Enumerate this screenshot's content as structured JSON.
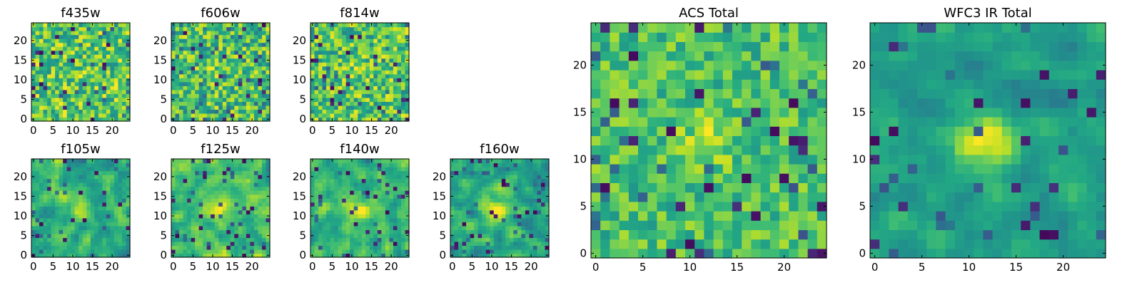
{
  "chart_data": [
    {
      "type": "heatmap",
      "title": "f435w",
      "x_ticks": [
        "0",
        "5",
        "10",
        "15",
        "20"
      ],
      "y_ticks": [
        "0",
        "5",
        "10",
        "15",
        "20"
      ],
      "xlim": [
        -0.5,
        24.5
      ],
      "ylim": [
        -0.5,
        24.5
      ],
      "grid": false,
      "colormap": "viridis",
      "pixels": "25x25",
      "note": "pixel noise field"
    },
    {
      "type": "heatmap",
      "title": "f606w",
      "x_ticks": [
        "0",
        "5",
        "10",
        "15",
        "20"
      ],
      "y_ticks": [
        "0",
        "5",
        "10",
        "15",
        "20"
      ],
      "xlim": [
        -0.5,
        24.5
      ],
      "ylim": [
        -0.5,
        24.5
      ],
      "grid": false,
      "colormap": "viridis",
      "pixels": "25x25"
    },
    {
      "type": "heatmap",
      "title": "f814w",
      "x_ticks": [
        "0",
        "5",
        "10",
        "15",
        "20"
      ],
      "y_ticks": [
        "0",
        "5",
        "10",
        "15",
        "20"
      ],
      "xlim": [
        -0.5,
        24.5
      ],
      "ylim": [
        -0.5,
        24.5
      ],
      "grid": false,
      "colormap": "viridis",
      "pixels": "25x25"
    },
    {
      "type": "heatmap",
      "title": "f105w",
      "x_ticks": [
        "0",
        "5",
        "10",
        "15",
        "20"
      ],
      "y_ticks": [
        "0",
        "5",
        "10",
        "15",
        "20"
      ],
      "xlim": [
        -0.5,
        24.5
      ],
      "ylim": [
        -0.5,
        24.5
      ],
      "grid": false,
      "colormap": "viridis",
      "pixels": "25x25"
    },
    {
      "type": "heatmap",
      "title": "f125w",
      "x_ticks": [
        "0",
        "5",
        "10",
        "15",
        "20"
      ],
      "y_ticks": [
        "0",
        "5",
        "10",
        "15",
        "20"
      ],
      "xlim": [
        -0.5,
        24.5
      ],
      "ylim": [
        -0.5,
        24.5
      ],
      "grid": false,
      "colormap": "viridis",
      "pixels": "25x25"
    },
    {
      "type": "heatmap",
      "title": "f140w",
      "x_ticks": [
        "0",
        "5",
        "10",
        "15",
        "20"
      ],
      "y_ticks": [
        "0",
        "5",
        "10",
        "15",
        "20"
      ],
      "xlim": [
        -0.5,
        24.5
      ],
      "ylim": [
        -0.5,
        24.5
      ],
      "grid": false,
      "colormap": "viridis",
      "pixels": "25x25"
    },
    {
      "type": "heatmap",
      "title": "f160w",
      "x_ticks": [
        "0",
        "5",
        "10",
        "15",
        "20"
      ],
      "y_ticks": [
        "0",
        "5",
        "10",
        "15",
        "20"
      ],
      "xlim": [
        -0.5,
        24.5
      ],
      "ylim": [
        -0.5,
        24.5
      ],
      "grid": false,
      "colormap": "viridis",
      "pixels": "25x25"
    },
    {
      "type": "heatmap",
      "title": "ACS Total",
      "x_ticks": [
        "0",
        "5",
        "10",
        "15",
        "20"
      ],
      "y_ticks": [
        "0",
        "5",
        "10",
        "15",
        "20"
      ],
      "xlim": [
        -0.5,
        24.5
      ],
      "ylim": [
        -0.5,
        24.5
      ],
      "grid": false,
      "colormap": "viridis",
      "pixels": "25x25"
    },
    {
      "type": "heatmap",
      "title": "WFC3 IR Total",
      "x_ticks": [
        "0",
        "5",
        "10",
        "15",
        "20"
      ],
      "y_ticks": [
        "0",
        "5",
        "10",
        "15",
        "20"
      ],
      "xlim": [
        -0.5,
        24.5
      ],
      "ylim": [
        -0.5,
        24.5
      ],
      "grid": false,
      "colormap": "viridis",
      "pixels": "25x25"
    }
  ]
}
